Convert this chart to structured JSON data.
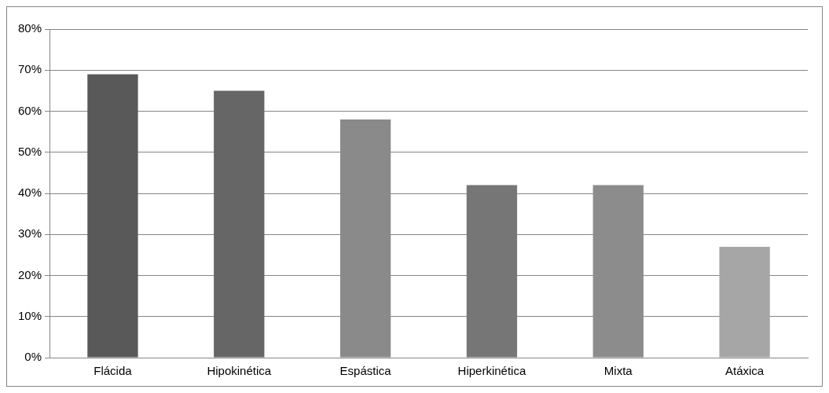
{
  "chart_data": {
    "type": "bar",
    "categories": [
      "Flácida",
      "Hipokinética",
      "Espástica",
      "Hiperkinética",
      "Mixta",
      "Atáxica"
    ],
    "values": [
      69,
      65,
      58,
      42,
      42,
      27
    ],
    "colors": [
      "#595959",
      "#666666",
      "#8a8a8a",
      "#767676",
      "#8c8c8c",
      "#a6a6a6"
    ],
    "ylim": [
      0,
      80
    ],
    "yticks": [
      {
        "value": 0,
        "label": "0%"
      },
      {
        "value": 10,
        "label": "10%"
      },
      {
        "value": 20,
        "label": "20%"
      },
      {
        "value": 30,
        "label": "30%"
      },
      {
        "value": 40,
        "label": "40%"
      },
      {
        "value": 50,
        "label": "50%"
      },
      {
        "value": 60,
        "label": "60%"
      },
      {
        "value": 70,
        "label": "70%"
      },
      {
        "value": 80,
        "label": "80%"
      }
    ],
    "grid": "y",
    "legend": false
  }
}
